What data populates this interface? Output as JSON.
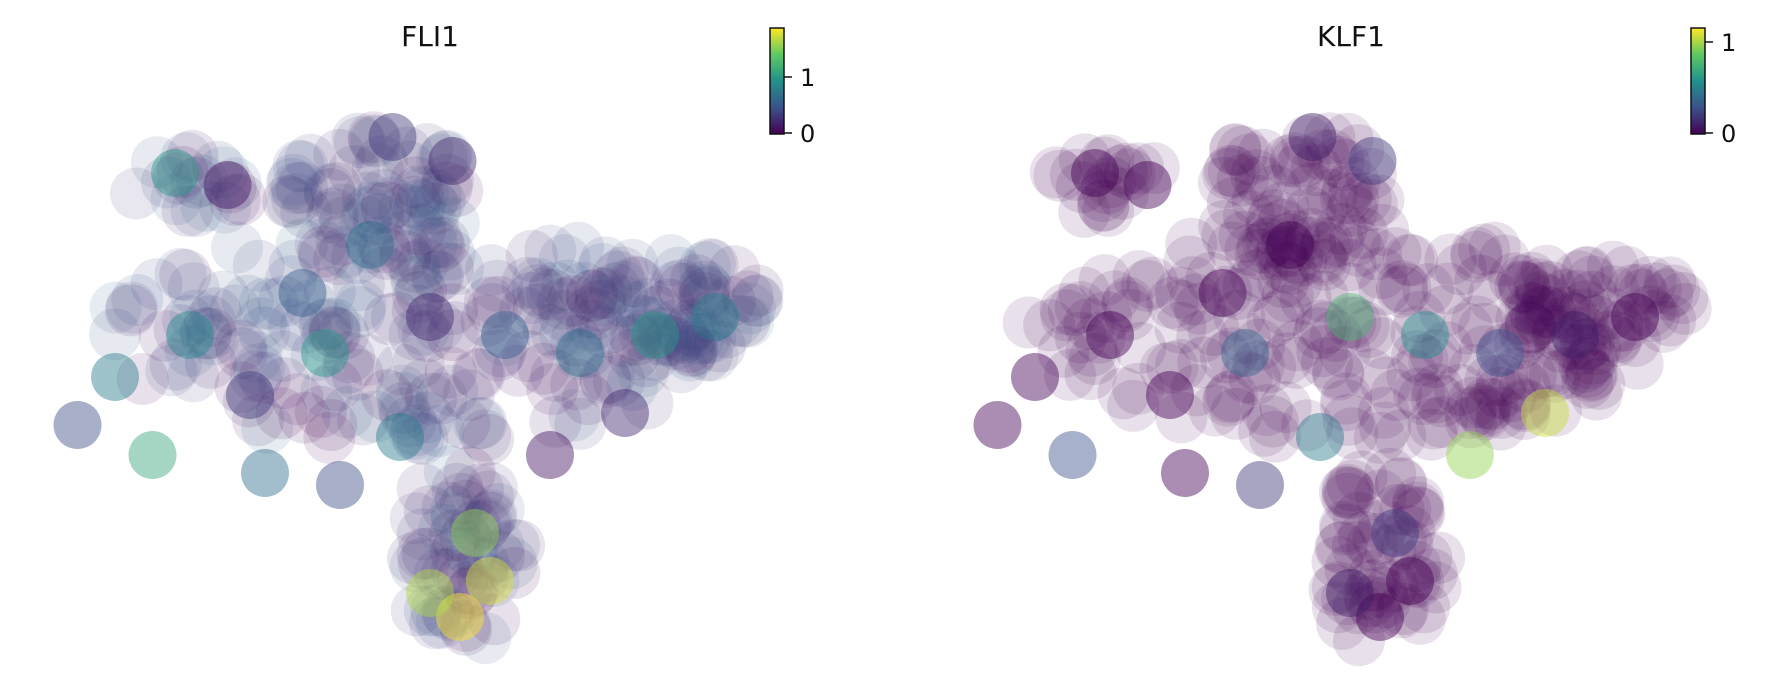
{
  "chart_data": [
    {
      "type": "scatter",
      "title": "FLI1",
      "xlabel": "",
      "ylabel": "",
      "axes_visible": false,
      "marker": "large translucent circles",
      "colormap": "viridis",
      "colorbar": {
        "min": 0,
        "max": 1.7,
        "ticks": [
          0,
          1
        ],
        "tick_labels": [
          "0",
          "1"
        ]
      },
      "high_value_region": "lower stem (yellow-green), scattered mid values on left lobe",
      "points": [
        {
          "x": 0.18,
          "y": 0.82,
          "v": 0.9
        },
        {
          "x": 0.25,
          "y": 0.8,
          "v": 0.1
        },
        {
          "x": 0.47,
          "y": 0.88,
          "v": 0.3
        },
        {
          "x": 0.55,
          "y": 0.84,
          "v": 0.2
        },
        {
          "x": 0.44,
          "y": 0.7,
          "v": 0.6
        },
        {
          "x": 0.35,
          "y": 0.62,
          "v": 0.5
        },
        {
          "x": 0.2,
          "y": 0.55,
          "v": 0.8
        },
        {
          "x": 0.1,
          "y": 0.48,
          "v": 0.7
        },
        {
          "x": 0.05,
          "y": 0.4,
          "v": 0.4
        },
        {
          "x": 0.15,
          "y": 0.35,
          "v": 1.0
        },
        {
          "x": 0.28,
          "y": 0.45,
          "v": 0.3
        },
        {
          "x": 0.38,
          "y": 0.52,
          "v": 0.9
        },
        {
          "x": 0.52,
          "y": 0.58,
          "v": 0.2
        },
        {
          "x": 0.62,
          "y": 0.55,
          "v": 0.5
        },
        {
          "x": 0.72,
          "y": 0.52,
          "v": 0.6
        },
        {
          "x": 0.82,
          "y": 0.55,
          "v": 0.9
        },
        {
          "x": 0.9,
          "y": 0.58,
          "v": 0.7
        },
        {
          "x": 0.78,
          "y": 0.42,
          "v": 0.2
        },
        {
          "x": 0.68,
          "y": 0.35,
          "v": 0.1
        },
        {
          "x": 0.48,
          "y": 0.38,
          "v": 0.7
        },
        {
          "x": 0.4,
          "y": 0.3,
          "v": 0.4
        },
        {
          "x": 0.3,
          "y": 0.32,
          "v": 0.6
        },
        {
          "x": 0.58,
          "y": 0.22,
          "v": 1.4
        },
        {
          "x": 0.6,
          "y": 0.14,
          "v": 1.6
        },
        {
          "x": 0.56,
          "y": 0.08,
          "v": 1.7
        },
        {
          "x": 0.52,
          "y": 0.12,
          "v": 1.5
        }
      ]
    },
    {
      "type": "scatter",
      "title": "KLF1",
      "xlabel": "",
      "ylabel": "",
      "axes_visible": false,
      "marker": "large translucent circles",
      "colormap": "viridis",
      "colorbar": {
        "min": 0,
        "max": 1.2,
        "ticks": [
          0,
          1
        ],
        "tick_labels": [
          "0",
          "1"
        ]
      },
      "high_value_region": "right-center cluster (yellow), mostly purple elsewhere",
      "points": [
        {
          "x": 0.18,
          "y": 0.82,
          "v": 0.0
        },
        {
          "x": 0.25,
          "y": 0.8,
          "v": 0.0
        },
        {
          "x": 0.47,
          "y": 0.88,
          "v": 0.1
        },
        {
          "x": 0.55,
          "y": 0.84,
          "v": 0.2
        },
        {
          "x": 0.44,
          "y": 0.7,
          "v": 0.0
        },
        {
          "x": 0.35,
          "y": 0.62,
          "v": 0.0
        },
        {
          "x": 0.2,
          "y": 0.55,
          "v": 0.0
        },
        {
          "x": 0.1,
          "y": 0.48,
          "v": 0.0
        },
        {
          "x": 0.05,
          "y": 0.4,
          "v": 0.0
        },
        {
          "x": 0.15,
          "y": 0.35,
          "v": 0.3
        },
        {
          "x": 0.28,
          "y": 0.45,
          "v": 0.0
        },
        {
          "x": 0.38,
          "y": 0.52,
          "v": 0.4
        },
        {
          "x": 0.52,
          "y": 0.58,
          "v": 0.8
        },
        {
          "x": 0.62,
          "y": 0.55,
          "v": 0.6
        },
        {
          "x": 0.72,
          "y": 0.52,
          "v": 0.3
        },
        {
          "x": 0.82,
          "y": 0.55,
          "v": 0.1
        },
        {
          "x": 0.9,
          "y": 0.58,
          "v": 0.0
        },
        {
          "x": 0.78,
          "y": 0.42,
          "v": 1.1
        },
        {
          "x": 0.68,
          "y": 0.35,
          "v": 1.0
        },
        {
          "x": 0.48,
          "y": 0.38,
          "v": 0.5
        },
        {
          "x": 0.4,
          "y": 0.3,
          "v": 0.2
        },
        {
          "x": 0.3,
          "y": 0.32,
          "v": 0.0
        },
        {
          "x": 0.58,
          "y": 0.22,
          "v": 0.2
        },
        {
          "x": 0.6,
          "y": 0.14,
          "v": 0.0
        },
        {
          "x": 0.56,
          "y": 0.08,
          "v": 0.0
        },
        {
          "x": 0.52,
          "y": 0.12,
          "v": 0.1
        }
      ]
    }
  ]
}
